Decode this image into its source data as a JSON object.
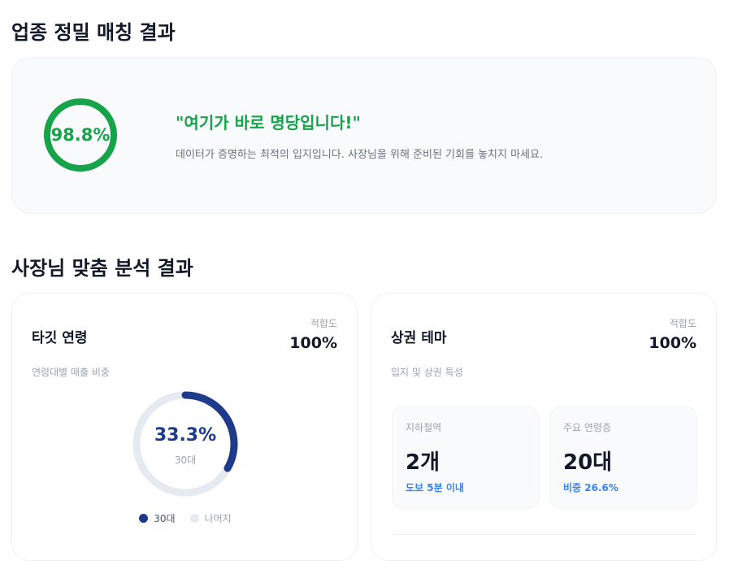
{
  "match_section": {
    "title": "업종 정밀 매칭 결과",
    "score": 98.8,
    "score_label": "98.8%",
    "headline": "\"여기가 바로 명당입니다!\"",
    "description": "데이터가 증명하는 최적의 입지입니다. 사장님을 위해 준비된 기회를 놓치지 마세요.",
    "accent_color": "#16a34a"
  },
  "analysis_section": {
    "title": "사장님 맞춤 분석 결과",
    "target_age": {
      "title": "타깃 연령",
      "fit_label": "적합도",
      "fit_value": "100%",
      "subtitle": "연령대별 매출 비중",
      "donut_percent": 33.3,
      "donut_label": "33.3%",
      "donut_caption": "30대",
      "legend": [
        {
          "label": "30대",
          "color": "#1e3a8a"
        },
        {
          "label": "나머지",
          "color": "#e5e9f0"
        }
      ]
    },
    "commercial_theme": {
      "title": "상권 테마",
      "fit_label": "적합도",
      "fit_value": "100%",
      "subtitle": "입지 및 상권 특성",
      "stats": [
        {
          "label": "지하철역",
          "value": "2개",
          "note": "도보 5분 이내"
        },
        {
          "label": "주요 연령층",
          "value": "20대",
          "note": "비중 26.6%"
        }
      ]
    }
  }
}
